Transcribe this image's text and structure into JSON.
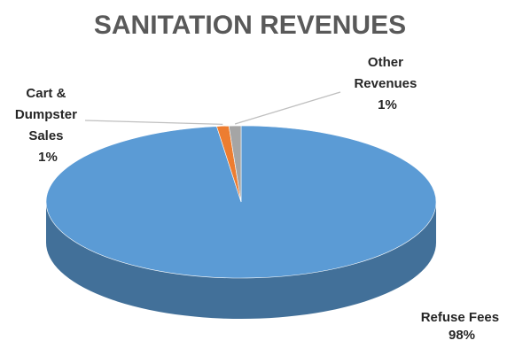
{
  "chart_data": {
    "type": "pie",
    "title": "SANITATION REVENUES",
    "slices": [
      {
        "name": "Refuse Fees",
        "percent_label": "98%",
        "value": 98,
        "color": "#5B9BD5"
      },
      {
        "name": "Cart & Dumpster Sales",
        "label_lines": [
          "Cart &",
          "Dumpster",
          "Sales"
        ],
        "percent_label": "1%",
        "value": 1,
        "color": "#ED7D31"
      },
      {
        "name": "Other Revenues",
        "label_lines": [
          "Other",
          "Revenues"
        ],
        "percent_label": "1%",
        "value": 1,
        "color": "#A5A5A5"
      }
    ],
    "legend": "none",
    "style": "3d"
  }
}
